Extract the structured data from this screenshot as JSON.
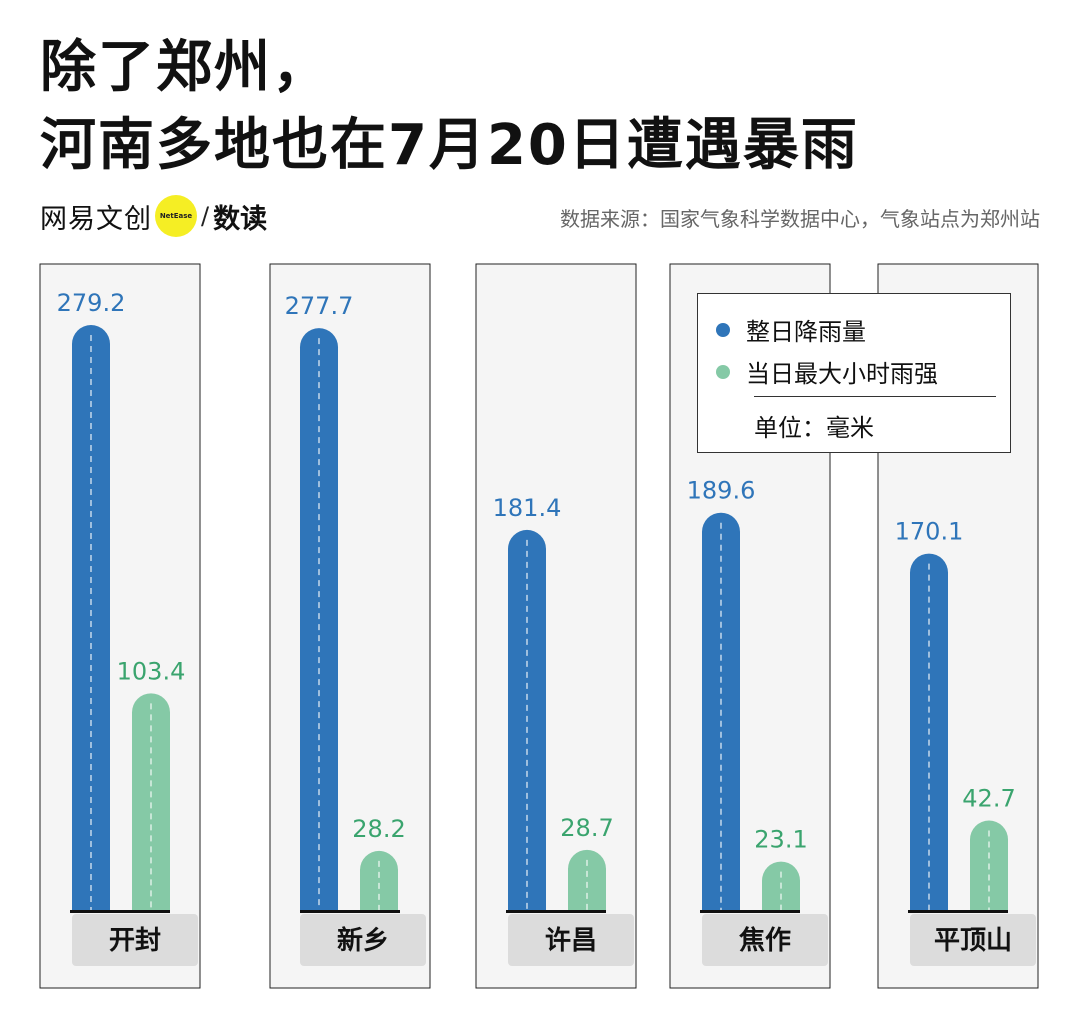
{
  "header": {
    "title_line1": "除了郑州，",
    "title_line2": "河南多地也在7月20日遭遇暴雨",
    "brand_cn": "网易文创",
    "brand_badge": "NetEase",
    "brand_sub": "数读",
    "source": "数据来源：国家气象科学数据中心，气象站点为郑州站"
  },
  "colors": {
    "total": "#2f75b9",
    "hourly": "#85c9a6",
    "total_text": "#2f75b9",
    "hourly_text": "#3aa46e",
    "panel_bg": "#f5f5f5",
    "label_bg": "#dcdcdc"
  },
  "chart_data": {
    "type": "bar",
    "title": "除了郑州，河南多地也在7月20日遭遇暴雨",
    "categories": [
      "开封",
      "新乡",
      "许昌",
      "焦作",
      "平顶山"
    ],
    "series": [
      {
        "name": "整日降雨量",
        "values": [
          279.2,
          277.7,
          181.4,
          189.6,
          170.1
        ]
      },
      {
        "name": "当日最大小时雨强",
        "values": [
          103.4,
          28.2,
          28.7,
          23.1,
          42.7
        ]
      }
    ],
    "ylim": [
      0,
      300
    ],
    "unit": "单位：毫米",
    "legend": {
      "position": "top-right",
      "items": [
        "整日降雨量",
        "当日最大小时雨强"
      ],
      "unit_label": "单位：毫米"
    }
  }
}
